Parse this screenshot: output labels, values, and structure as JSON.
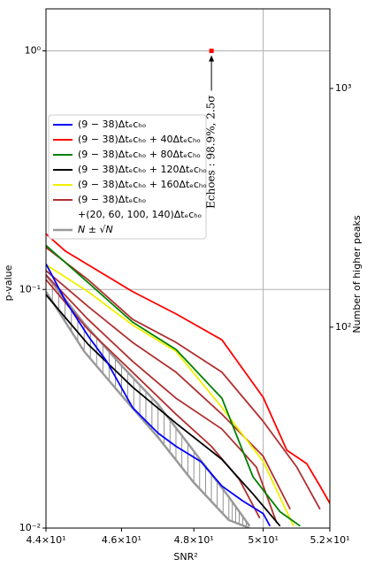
{
  "chart_data": {
    "type": "line",
    "xlabel": "SNR²",
    "ylabel": "p-value",
    "y2label": "Number of higher peaks",
    "xscale": "log",
    "yscale": "log",
    "y2scale": "log",
    "xlim": [
      44,
      52
    ],
    "ylim": [
      0.01,
      1.5
    ],
    "y2lim": [
      14.4,
      2155
    ],
    "xticks": [
      {
        "value": 44,
        "label": "4.4×10¹"
      },
      {
        "value": 46,
        "label": "4.6×10¹"
      },
      {
        "value": 48,
        "label": "4.8×10¹"
      },
      {
        "value": 50,
        "label": "5×10¹"
      },
      {
        "value": 52,
        "label": "5.2×10¹"
      }
    ],
    "yticks": [
      {
        "value": 0.01,
        "label": "10⁻²"
      },
      {
        "value": 0.1,
        "label": "10⁻¹"
      },
      {
        "value": 1,
        "label": "10⁰"
      }
    ],
    "y2ticks": [
      {
        "value": 100,
        "label": "10²"
      },
      {
        "value": 1000,
        "label": "10³"
      }
    ],
    "x_grid": [
      50
    ],
    "y_grid": [
      0.1,
      1
    ],
    "series": [
      {
        "name": "(9 − 38)Δtₑcₕₒ",
        "color": "#0000ff",
        "x": [
          44,
          44.5,
          45.1,
          45.6,
          46.3,
          47,
          47.5,
          48.2,
          48.8,
          49.4,
          50,
          50.2
        ],
        "values": [
          0.128,
          0.09,
          0.064,
          0.05,
          0.032,
          0.025,
          0.022,
          0.019,
          0.015,
          0.013,
          0.0115,
          0.0102
        ]
      },
      {
        "name": "(9 − 38)Δtₑcₕₒ + 40Δtₑcₕₒ",
        "color": "#ff0000",
        "x": [
          44,
          44.5,
          45.1,
          46.3,
          47.5,
          48.8,
          50,
          50.7,
          51.3,
          51.7,
          52
        ],
        "values": [
          0.171,
          0.145,
          0.127,
          0.098,
          0.079,
          0.0615,
          0.0353,
          0.0212,
          0.0186,
          0.015,
          0.0127
        ]
      },
      {
        "name": "(9 − 38)Δtₑcₕₒ + 80Δtₑcₕₒ",
        "color": "#008000",
        "x": [
          44,
          45.1,
          46.3,
          47.5,
          48.8,
          49.7,
          50.5,
          51.1
        ],
        "values": [
          0.153,
          0.107,
          0.073,
          0.056,
          0.035,
          0.0164,
          0.0117,
          0.0102
        ]
      },
      {
        "name": "(9 − 38)Δtₑcₕₒ + 120Δtₑcₕₒ",
        "color": "#000000",
        "x": [
          44,
          45.1,
          46.3,
          47.5,
          48.8,
          49.7,
          50.5
        ],
        "values": [
          0.095,
          0.059,
          0.039,
          0.0275,
          0.0194,
          0.0139,
          0.0102
        ]
      },
      {
        "name": "(9 − 38)Δtₑcₕₒ + 160Δtₑcₕₒ",
        "color": "#f0f000",
        "x": [
          44,
          45.1,
          46.3,
          47.5,
          48.8,
          50,
          50.9
        ],
        "values": [
          0.127,
          0.098,
          0.071,
          0.055,
          0.032,
          0.019,
          0.0102
        ]
      },
      {
        "name": [
          "(9 − 38)Δtₑcₕₒ",
          "+(20, 60, 100, 140)Δtₑcₕₒ"
        ],
        "color": "#b03030",
        "x": [
          44,
          45.1,
          46.3,
          47.5,
          48.8,
          50,
          51,
          51.7
        ],
        "values": [
          0.15,
          0.11,
          0.075,
          0.06,
          0.045,
          0.028,
          0.018,
          0.012
        ]
      },
      {
        "color": "#b03030",
        "x": [
          44,
          45.1,
          46.3,
          47.5,
          48.8,
          50,
          50.8
        ],
        "values": [
          0.12,
          0.085,
          0.06,
          0.045,
          0.03,
          0.02,
          0.012
        ]
      },
      {
        "color": "#b03030",
        "x": [
          44,
          45.1,
          46.3,
          47.5,
          48.8,
          49.8,
          50.4
        ],
        "values": [
          0.115,
          0.075,
          0.05,
          0.035,
          0.026,
          0.018,
          0.0105
        ]
      },
      {
        "color": "#b03030",
        "x": [
          44,
          45.1,
          46.3,
          47.5,
          48.5,
          49.3,
          49.9
        ],
        "values": [
          0.11,
          0.068,
          0.045,
          0.03,
          0.022,
          0.016,
          0.011
        ]
      }
    ],
    "band": {
      "name": "N ± √N",
      "color": "#999999",
      "x": [
        44,
        45,
        46,
        47,
        48,
        49,
        49.6
      ],
      "upper": [
        0.115,
        0.072,
        0.048,
        0.033,
        0.021,
        0.0135,
        0.0102
      ],
      "lower": [
        0.098,
        0.055,
        0.036,
        0.024,
        0.0155,
        0.0108,
        0.01
      ]
    },
    "annotation": {
      "text": "Echoes : 98.9%, 2.5σ",
      "x": 48.5,
      "y": 1,
      "color": "#ff0000"
    }
  }
}
